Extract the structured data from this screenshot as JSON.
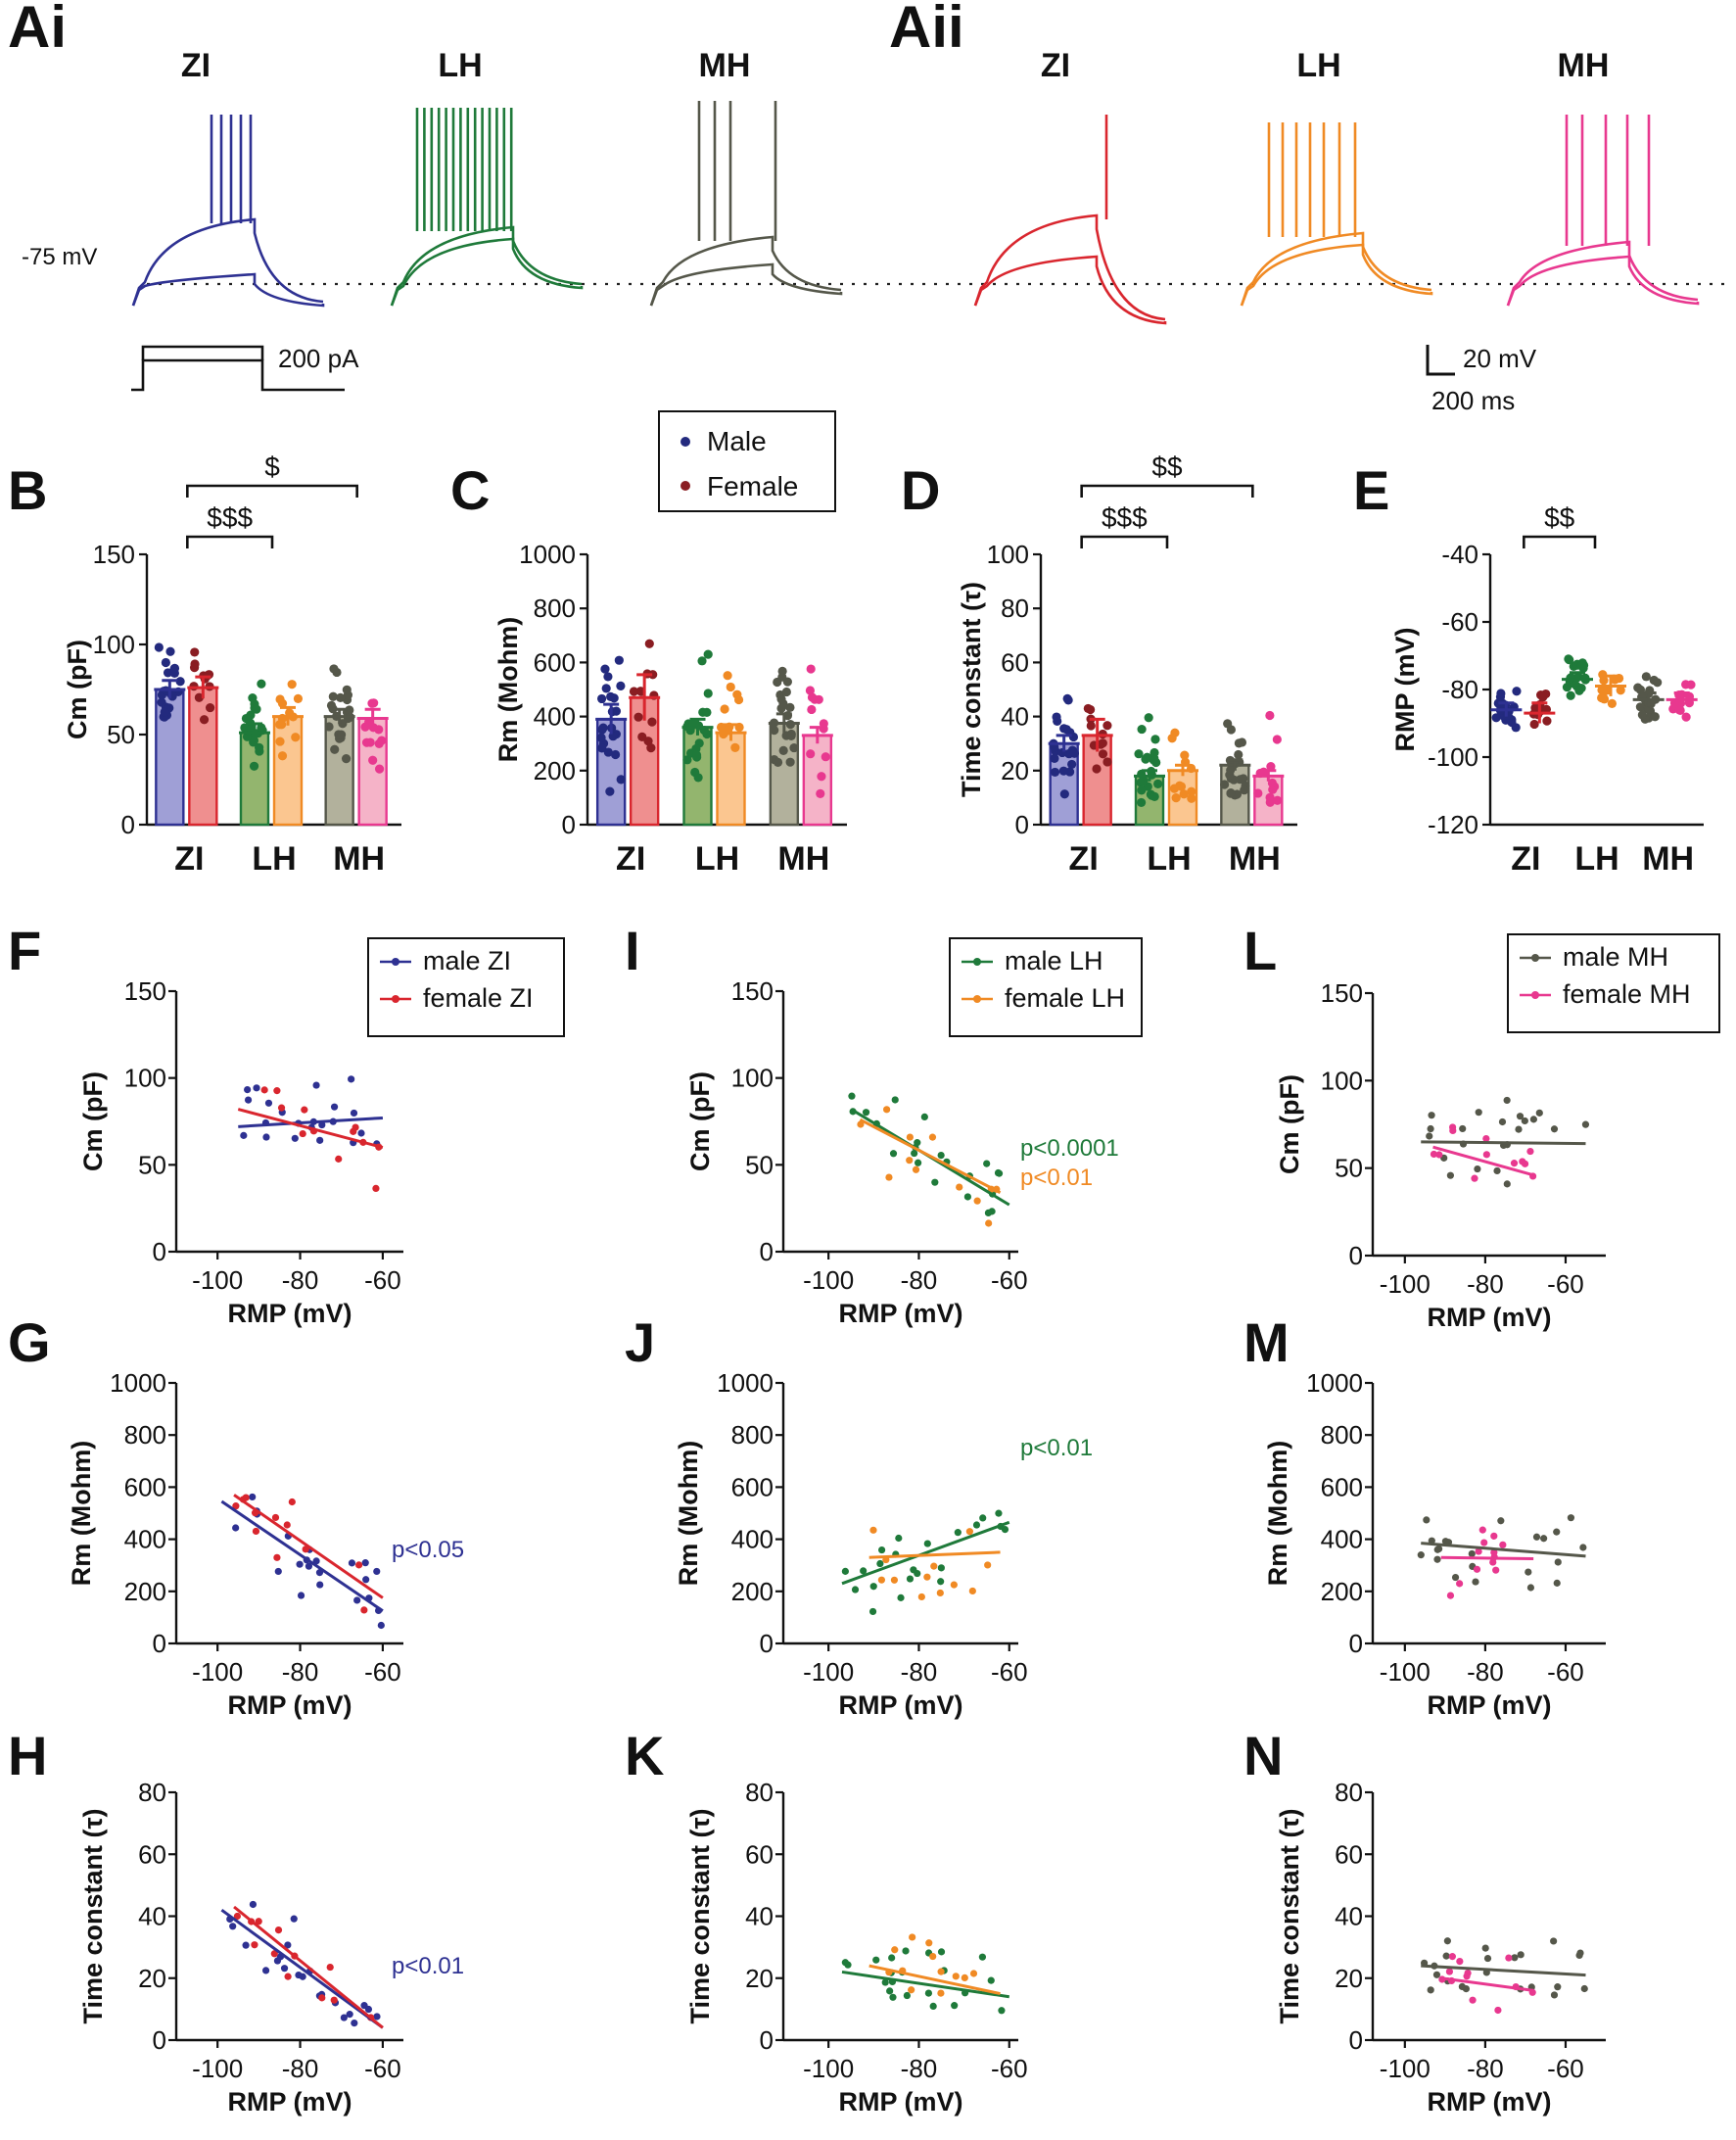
{
  "top": {
    "label_ai": "Ai",
    "label_aii": "Aii",
    "regions": [
      "ZI",
      "LH",
      "MH"
    ],
    "vm_label": "-75 mV",
    "current_label": "200 pA",
    "scale_v": "20 mV",
    "scale_t": "200 ms"
  },
  "colors": {
    "zi_m": "#2e3192",
    "zi_f": "#d9262e",
    "lh_m": "#1f7a3a",
    "lh_f": "#f08a24",
    "mh_m": "#55574a",
    "mh_f": "#e8388f",
    "bar_zi_m": "#9f9fd6",
    "bar_zi_f": "#ef8f8f",
    "bar_lh_m": "#93b56e",
    "bar_lh_f": "#fbc690",
    "bar_mh_m": "#b2b19c",
    "bar_mh_f": "#f5b3c8",
    "dot_male": "#232a7e",
    "dot_female": "#8a1d22"
  },
  "legend_sex": {
    "male": "Male",
    "female": "Female"
  },
  "chart_data": [
    {
      "id": "B",
      "type": "bar",
      "label": "B",
      "ylabel": "Cm (pF)",
      "ylim": [
        0,
        150
      ],
      "yticks": [
        0,
        50,
        100,
        150
      ],
      "categories": [
        "ZI",
        "LH",
        "MH"
      ],
      "series": [
        {
          "name": "Male",
          "values": [
            75,
            51,
            60
          ],
          "sem": [
            5,
            5,
            4
          ]
        },
        {
          "name": "Female",
          "values": [
            76,
            60,
            59
          ],
          "sem": [
            6,
            5,
            5
          ]
        }
      ],
      "annotations": [
        {
          "text": "$$$",
          "from": "ZI",
          "to": "LH",
          "level": 0
        },
        {
          "text": "$",
          "from": "ZI",
          "to": "MH",
          "level": 1
        }
      ]
    },
    {
      "id": "C",
      "type": "bar",
      "label": "C",
      "ylabel": "Rm (Mohm)",
      "ylim": [
        0,
        1000
      ],
      "yticks": [
        0,
        200,
        400,
        600,
        800,
        1000
      ],
      "categories": [
        "ZI",
        "LH",
        "MH"
      ],
      "series": [
        {
          "name": "Male",
          "values": [
            390,
            360,
            375
          ],
          "sem": [
            55,
            30,
            35
          ]
        },
        {
          "name": "Female",
          "values": [
            470,
            340,
            330
          ],
          "sem": [
            85,
            30,
            30
          ]
        }
      ],
      "annotations": []
    },
    {
      "id": "D",
      "type": "bar",
      "label": "D",
      "ylabel": "Time constant (τ)",
      "ylim": [
        0,
        100
      ],
      "yticks": [
        0,
        20,
        40,
        60,
        80,
        100
      ],
      "categories": [
        "ZI",
        "LH",
        "MH"
      ],
      "series": [
        {
          "name": "Male",
          "values": [
            30,
            18,
            22
          ],
          "sem": [
            3,
            2,
            2
          ]
        },
        {
          "name": "Female",
          "values": [
            33,
            20,
            18
          ],
          "sem": [
            6,
            2,
            2
          ]
        }
      ],
      "annotations": [
        {
          "text": "$$$",
          "from": "ZI",
          "to": "LH",
          "level": 0
        },
        {
          "text": "$$",
          "from": "ZI",
          "to": "MH",
          "level": 1
        }
      ]
    },
    {
      "id": "E",
      "type": "scatter",
      "label": "E",
      "ylabel": "RMP (mV)",
      "ylim": [
        -120,
        -40
      ],
      "yticks": [
        -120,
        -100,
        -80,
        -60,
        -40
      ],
      "categories": [
        "ZI",
        "LH",
        "MH"
      ],
      "series": [
        {
          "name": "Male",
          "values": [
            -86,
            -77,
            -83
          ],
          "sem": [
            2,
            2,
            2
          ]
        },
        {
          "name": "Female",
          "values": [
            -87,
            -79,
            -83
          ],
          "sem": [
            3,
            3,
            2
          ]
        }
      ],
      "annotations": [
        {
          "text": "$$",
          "from": "ZI",
          "to": "LH",
          "level": 0
        }
      ]
    },
    {
      "id": "F",
      "type": "scatter",
      "label": "F",
      "region": "ZI",
      "ylabel": "Cm (pF)",
      "xlabel": "RMP (mV)",
      "ylim": [
        0,
        150
      ],
      "yticks": [
        0,
        50,
        100,
        150
      ],
      "xlim": [
        -110,
        -55
      ],
      "xticks": [
        -100,
        -80,
        -60
      ],
      "legend": [
        "male ZI",
        "female ZI"
      ],
      "fits": [
        [
          -95,
          72,
          -60,
          77
        ],
        [
          -95,
          82,
          -60,
          60
        ]
      ],
      "pvalues": []
    },
    {
      "id": "G",
      "type": "scatter",
      "label": "G",
      "region": "ZI",
      "ylabel": "Rm (Mohm)",
      "xlabel": "RMP (mV)",
      "ylim": [
        0,
        1000
      ],
      "yticks": [
        0,
        200,
        400,
        600,
        800,
        1000
      ],
      "xlim": [
        -110,
        -55
      ],
      "xticks": [
        -100,
        -80,
        -60
      ],
      "legend": [],
      "fits": [
        [
          -99,
          545,
          -60,
          125
        ],
        [
          -96,
          570,
          -60,
          175
        ]
      ],
      "pvalues": [
        {
          "text": "p<0.05",
          "series": "male"
        }
      ]
    },
    {
      "id": "H",
      "type": "scatter",
      "label": "H",
      "region": "ZI",
      "ylabel": "Time constant (τ)",
      "xlabel": "RMP (mV)",
      "ylim": [
        0,
        80
      ],
      "yticks": [
        0,
        20,
        40,
        60,
        80
      ],
      "xlim": [
        -110,
        -55
      ],
      "xticks": [
        -100,
        -80,
        -60
      ],
      "legend": [],
      "fits": [
        [
          -99,
          42,
          -60,
          4
        ],
        [
          -96,
          43,
          -60,
          4
        ]
      ],
      "pvalues": [
        {
          "text": "p<0.01",
          "series": "male"
        }
      ]
    },
    {
      "id": "I",
      "type": "scatter",
      "label": "I",
      "region": "LH",
      "ylabel": "Cm (pF)",
      "xlabel": "RMP (mV)",
      "ylim": [
        0,
        150
      ],
      "yticks": [
        0,
        50,
        100,
        150
      ],
      "xlim": [
        -110,
        -58
      ],
      "xticks": [
        -100,
        -80,
        -60
      ],
      "legend": [
        "male LH",
        "female LH"
      ],
      "fits": [
        [
          -95,
          82,
          -60,
          27
        ],
        [
          -93,
          76,
          -62,
          34
        ]
      ],
      "pvalues": [
        {
          "text": "p<0.0001",
          "series": "male"
        },
        {
          "text": "p<0.01",
          "series": "female"
        }
      ]
    },
    {
      "id": "J",
      "type": "scatter",
      "label": "J",
      "region": "LH",
      "ylabel": "Rm (Mohm)",
      "xlabel": "RMP (mV)",
      "ylim": [
        0,
        1000
      ],
      "yticks": [
        0,
        200,
        400,
        600,
        800,
        1000
      ],
      "xlim": [
        -110,
        -58
      ],
      "xticks": [
        -100,
        -80,
        -60
      ],
      "legend": [],
      "fits": [
        [
          -97,
          230,
          -60,
          465
        ],
        [
          -91,
          330,
          -62,
          350
        ]
      ],
      "pvalues": [
        {
          "text": "p<0.01",
          "series": "male"
        }
      ]
    },
    {
      "id": "K",
      "type": "scatter",
      "label": "K",
      "region": "LH",
      "ylabel": "Time constant (τ)",
      "xlabel": "RMP (mV)",
      "ylim": [
        0,
        80
      ],
      "yticks": [
        0,
        20,
        40,
        60,
        80
      ],
      "xlim": [
        -110,
        -58
      ],
      "xticks": [
        -100,
        -80,
        -60
      ],
      "legend": [],
      "fits": [
        [
          -97,
          22,
          -60,
          14
        ],
        [
          -91,
          24,
          -62,
          15
        ]
      ],
      "pvalues": []
    },
    {
      "id": "L",
      "type": "scatter",
      "label": "L",
      "region": "MH",
      "ylabel": "Cm (pF)",
      "xlabel": "RMP (mV)",
      "ylim": [
        0,
        150
      ],
      "yticks": [
        0,
        50,
        100,
        150
      ],
      "xlim": [
        -108,
        -50
      ],
      "xticks": [
        -100,
        -80,
        -60
      ],
      "legend": [
        "male MH",
        "female MH"
      ],
      "fits": [
        [
          -96,
          65,
          -55,
          64
        ],
        [
          -93,
          62,
          -68,
          46
        ]
      ],
      "pvalues": []
    },
    {
      "id": "M",
      "type": "scatter",
      "label": "M",
      "region": "MH",
      "ylabel": "Rm (Mohm)",
      "xlabel": "RMP (mV)",
      "ylim": [
        0,
        1000
      ],
      "yticks": [
        0,
        200,
        400,
        600,
        800,
        1000
      ],
      "xlim": [
        -108,
        -50
      ],
      "xticks": [
        -100,
        -80,
        -60
      ],
      "legend": [],
      "fits": [
        [
          -96,
          385,
          -55,
          335
        ],
        [
          -91,
          330,
          -68,
          325
        ]
      ],
      "pvalues": []
    },
    {
      "id": "N",
      "type": "scatter",
      "label": "N",
      "region": "MH",
      "ylabel": "Time constant (τ)",
      "xlabel": "RMP (mV)",
      "ylim": [
        0,
        80
      ],
      "yticks": [
        0,
        20,
        40,
        60,
        80
      ],
      "xlim": [
        -108,
        -50
      ],
      "xticks": [
        -100,
        -80,
        -60
      ],
      "legend": [],
      "fits": [
        [
          -96,
          24,
          -55,
          21
        ],
        [
          -91,
          20,
          -68,
          16
        ]
      ],
      "pvalues": []
    }
  ]
}
